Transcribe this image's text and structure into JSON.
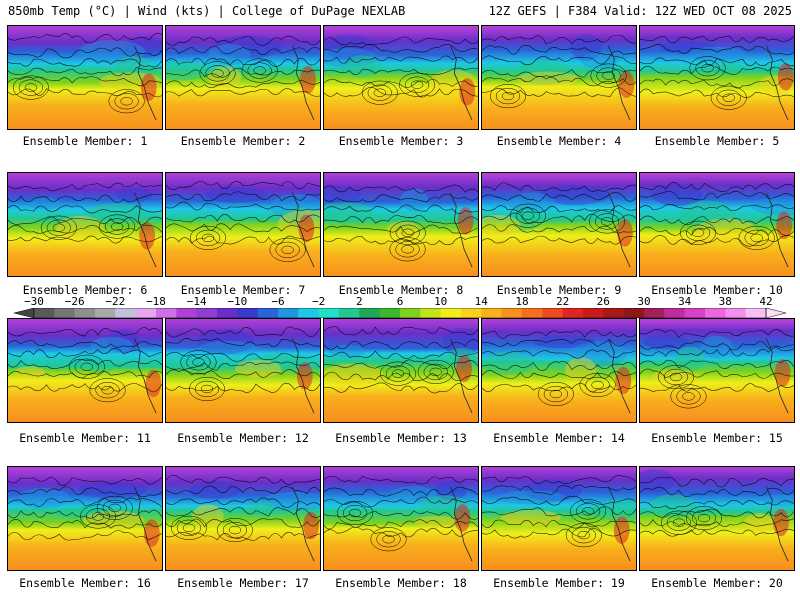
{
  "header": {
    "title_left": "850mb Temp (°C) | Wind (kts) | College of DuPage NEXLAB",
    "title_right": "12Z GEFS | F384 Valid: 12Z WED OCT 08 2025"
  },
  "members": [
    {
      "label": "Ensemble Member: 1"
    },
    {
      "label": "Ensemble Member: 2"
    },
    {
      "label": "Ensemble Member: 3"
    },
    {
      "label": "Ensemble Member: 4"
    },
    {
      "label": "Ensemble Member: 5"
    },
    {
      "label": "Ensemble Member: 6"
    },
    {
      "label": "Ensemble Member: 7"
    },
    {
      "label": "Ensemble Member: 8"
    },
    {
      "label": "Ensemble Member: 9"
    },
    {
      "label": "Ensemble Member: 10"
    },
    {
      "label": "Ensemble Member: 11"
    },
    {
      "label": "Ensemble Member: 12"
    },
    {
      "label": "Ensemble Member: 13"
    },
    {
      "label": "Ensemble Member: 14"
    },
    {
      "label": "Ensemble Member: 15"
    },
    {
      "label": "Ensemble Member: 16"
    },
    {
      "label": "Ensemble Member: 17"
    },
    {
      "label": "Ensemble Member: 18"
    },
    {
      "label": "Ensemble Member: 19"
    },
    {
      "label": "Ensemble Member: 20"
    }
  ],
  "colorbar": {
    "tick_labels": [
      "−30",
      "−26",
      "−22",
      "−18",
      "−14",
      "−10",
      "−6",
      "−2",
      "2",
      "6",
      "10",
      "14",
      "18",
      "22",
      "26",
      "30",
      "34",
      "38",
      "42"
    ],
    "colors": [
      "#5a5a5a",
      "#767676",
      "#8f8f8f",
      "#a8a8a8",
      "#c2c2dc",
      "#e6a6f0",
      "#d070e8",
      "#b040d8",
      "#8e3ed4",
      "#6a2fc8",
      "#3a3ad0",
      "#2a64d8",
      "#1e96e0",
      "#1ec8e6",
      "#22e0c8",
      "#22c890",
      "#20a85a",
      "#3cb82a",
      "#7ed21e",
      "#c2e21a",
      "#f0ee1a",
      "#f8d21c",
      "#f8b01c",
      "#f8901e",
      "#f66e20",
      "#f04a22",
      "#e02424",
      "#c81c1c",
      "#a81818",
      "#8e1818",
      "#a0205a",
      "#c02ca0",
      "#d840c8",
      "#ee66e0",
      "#f490ec",
      "#f8c0f4"
    ]
  }
}
